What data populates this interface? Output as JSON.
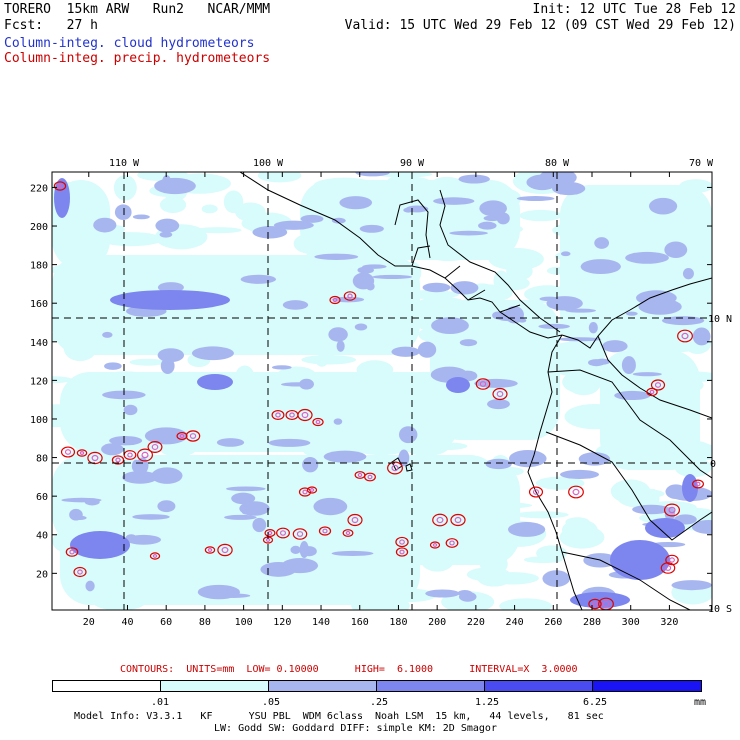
{
  "header": {
    "line1_left": "TORERO  15km ARW   Run2   NCAR/MMM",
    "line1_right": "Init: 12 UTC Tue 28 Feb 12",
    "line2_left": "Fcst:   27 h",
    "line2_right": "Valid: 15 UTC Wed 29 Feb 12 (09 CST Wed 29 Feb 12)",
    "field1": "Column-integ. cloud hydrometeors",
    "field2": "Column-integ. precip. hydrometeors",
    "field1_color": "#2233cc",
    "field2_color": "#cc0000"
  },
  "map": {
    "lon_labels": [
      "110 W",
      "100 W",
      "90 W",
      "80 W",
      "70 W"
    ],
    "lat_labels": [
      "10 N",
      "0",
      "10 S"
    ],
    "y_ticks": [
      "220",
      "200",
      "180",
      "160",
      "140",
      "120",
      "100",
      "80",
      "60",
      "40",
      "20"
    ],
    "x_ticks": [
      "20",
      "40",
      "60",
      "80",
      "100",
      "120",
      "140",
      "160",
      "180",
      "200",
      "220",
      "240",
      "260",
      "280",
      "300",
      "320"
    ],
    "cloud_colors": [
      "#d8fbfb",
      "#a8b6f0",
      "#7c86ee",
      "#4a4cf2",
      "#1a14f4"
    ],
    "precip_color": "#e00000"
  },
  "contours": {
    "label": "CONTOURS:  UNITS=mm  LOW= 0.10000      HIGH=  6.1000      INTERVAL=X  3.0000"
  },
  "colorbar": {
    "labels": [
      ".01",
      ".05",
      ".25",
      "1.25",
      "6.25"
    ],
    "units": "mm"
  },
  "footer": {
    "line1": "Model Info: V3.3.1   KF      YSU PBL  WDM 6class  Noah LSM  15 km,   44 levels,   81 sec",
    "line2": "LW: Godd SW: Goddard DIFF: simple KM: 2D Smagor"
  }
}
